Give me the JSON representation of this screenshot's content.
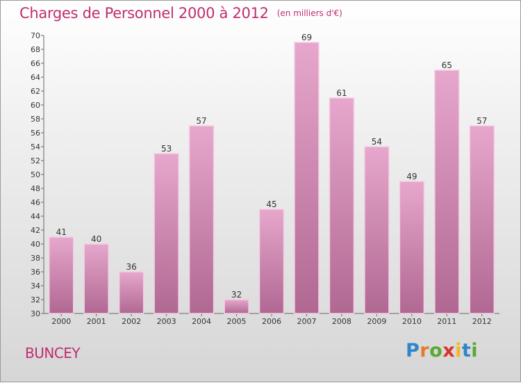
{
  "title": "Charges de Personnel 2000 à 2012",
  "subtitle": "(en milliers d'€)",
  "commune": "BUNCEY",
  "logo": {
    "text": "Proxiti",
    "letters": [
      "P",
      "r",
      "o",
      "x",
      "i",
      "t",
      "i"
    ],
    "colors": [
      "#2f86c9",
      "#e8782a",
      "#59a834",
      "#d9342b",
      "#f3b81f",
      "#2f86c9",
      "#59a834"
    ]
  },
  "colors": {
    "accent": "#c02c6e",
    "bar_top": "#e7a7cc",
    "bar_bottom": "#b06892"
  },
  "chart_data": {
    "type": "bar",
    "categories": [
      "2000",
      "2001",
      "2002",
      "2003",
      "2004",
      "2005",
      "2006",
      "2007",
      "2008",
      "2009",
      "2010",
      "2011",
      "2012"
    ],
    "values": [
      41,
      40,
      36,
      53,
      57,
      32,
      45,
      69,
      61,
      54,
      49,
      65,
      57
    ],
    "ylim": [
      30,
      70
    ],
    "yticks": [
      30,
      32,
      34,
      36,
      38,
      40,
      42,
      44,
      46,
      48,
      50,
      52,
      54,
      56,
      58,
      60,
      62,
      64,
      66,
      68,
      70
    ],
    "grid": false,
    "data_labels": true
  }
}
